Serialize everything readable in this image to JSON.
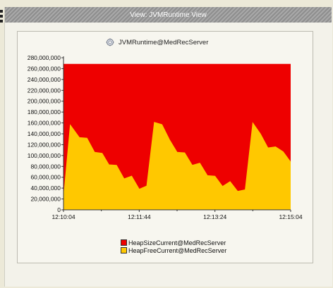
{
  "window": {
    "title": "View:  JVMRuntime View"
  },
  "chart_icon": "jvm-runtime-gear-icon",
  "colors": {
    "heap_size": "#ee0000",
    "heap_free": "#ffc800",
    "background": "#ece9d8",
    "panel": "#f7f6ef"
  },
  "chart_data": {
    "type": "area",
    "title": "JVMRuntime@MedRecServer",
    "xlabel": "",
    "ylabel": "",
    "x_ticks": [
      "12:10:04",
      "12:11:44",
      "12:13:24",
      "12:15:04"
    ],
    "x_range": [
      0,
      300
    ],
    "ylim": [
      0,
      280000000
    ],
    "y_ticks": [
      0,
      20000000,
      40000000,
      60000000,
      80000000,
      100000000,
      120000000,
      140000000,
      160000000,
      180000000,
      200000000,
      220000000,
      240000000,
      260000000,
      280000000
    ],
    "y_tick_labels": [
      "0",
      "20,000,000",
      "40,000,000",
      "60,000,000",
      "80,000,000",
      "100,000,000",
      "120,000,000",
      "140,000,000",
      "160,000,000",
      "180,000,000",
      "200,000,000",
      "220,000,000",
      "240,000,000",
      "260,000,000",
      "280,000,000"
    ],
    "grid": false,
    "legend_placement": "bottom",
    "series": [
      {
        "name": "HeapSizeCurrent@MedRecServer",
        "color": "#ee0000",
        "points": [
          [
            0,
            268000000
          ],
          [
            300,
            268000000
          ]
        ]
      },
      {
        "name": "HeapFreeCurrent@MedRecServer",
        "color": "#ffc800",
        "points": [
          [
            0,
            20000000
          ],
          [
            9,
            156000000
          ],
          [
            21,
            133000000
          ],
          [
            31,
            132000000
          ],
          [
            41,
            106000000
          ],
          [
            51,
            104000000
          ],
          [
            60,
            83000000
          ],
          [
            70,
            82000000
          ],
          [
            80,
            57000000
          ],
          [
            90,
            62000000
          ],
          [
            100,
            38000000
          ],
          [
            110,
            44000000
          ],
          [
            120,
            161000000
          ],
          [
            130,
            157000000
          ],
          [
            140,
            129000000
          ],
          [
            150,
            106000000
          ],
          [
            160,
            105000000
          ],
          [
            170,
            82000000
          ],
          [
            180,
            86000000
          ],
          [
            190,
            63000000
          ],
          [
            200,
            62000000
          ],
          [
            210,
            43000000
          ],
          [
            220,
            52000000
          ],
          [
            230,
            34000000
          ],
          [
            240,
            37000000
          ],
          [
            250,
            160000000
          ],
          [
            260,
            140000000
          ],
          [
            270,
            114000000
          ],
          [
            280,
            116000000
          ],
          [
            290,
            107000000
          ],
          [
            300,
            88000000
          ]
        ]
      }
    ]
  }
}
